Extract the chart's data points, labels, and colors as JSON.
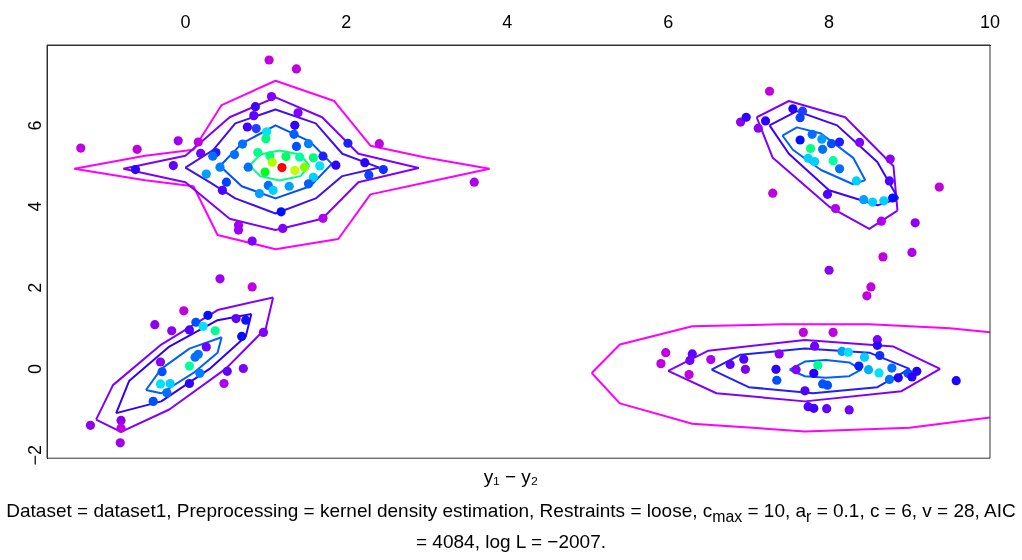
{
  "chart_data": {
    "type": "scatter",
    "xlabel": "y₁ − y₂",
    "annotations": [
      "Dataset = dataset1, Preprocessing = kernel density estimation, Restraints = loose, c$_{max}$ = 10, a$_{r}$ = 0.1, c = 6, v = 28, AIC = 4084, log L = −2007."
    ],
    "xlim": [
      -1.72,
      10
    ],
    "xticks": [
      0,
      2,
      4,
      6,
      8,
      10
    ],
    "ylim": [
      -2.2,
      7.98
    ],
    "yticks": [
      {
        "value": -2,
        "label": "−2"
      },
      0,
      2,
      4,
      6
    ],
    "grid": false,
    "legend": false,
    "marker": "circle",
    "series": [
      {
        "type": "line",
        "marker": "none",
        "color": "#00ff80",
        "x": [
          0.8,
          0.93,
          1.17,
          1.43,
          1.54
        ],
        "values": [
          5.01,
          5.28,
          5.38,
          5.28,
          5.01
        ]
      },
      {
        "type": "line",
        "marker": "none",
        "color": "#00ff80",
        "x": [
          0.8,
          0.93,
          1.17,
          1.43,
          1.54
        ],
        "values": [
          5.01,
          4.75,
          4.64,
          4.75,
          5.01
        ]
      },
      {
        "type": "line",
        "marker": "none",
        "color": "#0050ff",
        "x": [
          0.43,
          0.7,
          1.12,
          1.55,
          1.82
        ],
        "values": [
          5.0,
          5.55,
          6.0,
          5.6,
          5.05
        ]
      },
      {
        "type": "line",
        "marker": "none",
        "color": "#0050ff",
        "x": [
          0.43,
          0.7,
          1.12,
          1.55,
          1.82
        ],
        "values": [
          5.0,
          4.5,
          4.2,
          4.5,
          5.05
        ]
      },
      {
        "type": "line",
        "marker": "none",
        "color": "#4010f0",
        "x": [
          0.0,
          0.35,
          0.62,
          1.12,
          1.62,
          1.95,
          2.41
        ],
        "values": [
          4.96,
          5.4,
          6.05,
          6.39,
          6.05,
          5.3,
          4.96
        ]
      },
      {
        "type": "line",
        "marker": "none",
        "color": "#4010f0",
        "x": [
          0.0,
          0.3,
          0.62,
          1.12,
          1.62,
          1.95,
          2.41
        ],
        "values": [
          4.96,
          4.6,
          4.2,
          3.83,
          4.2,
          4.75,
          4.96
        ]
      },
      {
        "type": "line",
        "marker": "none",
        "color": "#8000ff",
        "x": [
          -0.77,
          0.0,
          0.55,
          1.12,
          1.7,
          2.15,
          2.9
        ],
        "values": [
          4.93,
          5.25,
          6.2,
          6.69,
          6.2,
          5.3,
          4.95
        ]
      },
      {
        "type": "line",
        "marker": "none",
        "color": "#8000ff",
        "x": [
          -0.77,
          0.0,
          0.55,
          1.12,
          1.7,
          2.15,
          2.9
        ],
        "values": [
          4.93,
          4.6,
          3.7,
          3.42,
          3.7,
          4.6,
          4.95
        ]
      },
      {
        "type": "line",
        "marker": "none",
        "color": "#ff00ff",
        "x": [
          -1.38,
          -0.5,
          0.1,
          0.45,
          1.12,
          1.85,
          2.3,
          3.0,
          3.78
        ],
        "values": [
          4.93,
          5.25,
          5.4,
          6.5,
          7.1,
          6.6,
          5.5,
          5.2,
          4.93
        ]
      },
      {
        "type": "line",
        "marker": "none",
        "color": "#ff00ff",
        "x": [
          -1.38,
          -0.5,
          0.1,
          0.4,
          1.12,
          1.9,
          2.3,
          3.0,
          3.78
        ],
        "values": [
          4.93,
          4.65,
          4.5,
          3.3,
          2.95,
          3.2,
          4.3,
          4.6,
          4.93
        ]
      },
      {
        "type": "line",
        "marker": "none",
        "color": "#0060ff",
        "x": [
          -0.49,
          -0.3,
          0.05,
          0.45
        ],
        "values": [
          -0.52,
          0.0,
          0.5,
          0.78
        ]
      },
      {
        "type": "line",
        "marker": "none",
        "color": "#0060ff",
        "x": [
          -0.49,
          -0.3,
          0.1,
          0.4,
          0.45
        ],
        "values": [
          -0.52,
          -0.6,
          -0.1,
          0.4,
          0.78
        ]
      },
      {
        "type": "line",
        "marker": "none",
        "color": "#3000ff",
        "x": [
          -0.86,
          -0.7,
          -0.2,
          0.4,
          0.82
        ],
        "values": [
          -1.09,
          -0.3,
          0.55,
          1.2,
          1.35
        ]
      },
      {
        "type": "line",
        "marker": "none",
        "color": "#3000ff",
        "x": [
          -0.86,
          -0.3,
          0.3,
          0.75,
          0.82
        ],
        "values": [
          -1.09,
          -0.8,
          0.0,
          0.8,
          1.35
        ]
      },
      {
        "type": "line",
        "marker": "none",
        "color": "#8000ff",
        "x": [
          -1.11,
          -0.9,
          -0.3,
          0.4,
          1.09
        ],
        "values": [
          -1.25,
          -0.4,
          0.6,
          1.45,
          1.76
        ]
      },
      {
        "type": "line",
        "marker": "none",
        "color": "#8000ff",
        "x": [
          -1.11,
          -0.8,
          -0.2,
          0.5,
          1.0,
          1.09
        ],
        "values": [
          -1.25,
          -1.55,
          -1.0,
          0.0,
          1.0,
          1.76
        ]
      },
      {
        "type": "line",
        "marker": "none",
        "color": "#0060ff",
        "x": [
          7.42,
          7.6,
          7.9,
          8.3,
          8.45
        ],
        "values": [
          5.75,
          5.95,
          5.8,
          5.2,
          4.65
        ]
      },
      {
        "type": "line",
        "marker": "none",
        "color": "#0060ff",
        "x": [
          7.42,
          7.55,
          7.9,
          8.3,
          8.45
        ],
        "values": [
          5.75,
          5.4,
          4.9,
          4.55,
          4.65
        ]
      },
      {
        "type": "line",
        "marker": "none",
        "color": "#4000ff",
        "x": [
          7.26,
          7.6,
          8.1,
          8.6,
          8.86
        ],
        "values": [
          6.0,
          6.35,
          6.0,
          5.1,
          4.2
        ]
      },
      {
        "type": "line",
        "marker": "none",
        "color": "#4000ff",
        "x": [
          7.26,
          7.5,
          8.0,
          8.6,
          8.86
        ],
        "values": [
          6.0,
          5.3,
          4.4,
          4.03,
          4.2
        ]
      },
      {
        "type": "line",
        "marker": "none",
        "color": "#8000ff",
        "x": [
          7.1,
          7.5,
          8.2,
          8.8,
          8.85
        ],
        "values": [
          6.2,
          6.6,
          6.2,
          5.0,
          3.9
        ]
      },
      {
        "type": "line",
        "marker": "none",
        "color": "#8000ff",
        "x": [
          7.1,
          7.3,
          8.0,
          8.5,
          8.85
        ],
        "values": [
          6.2,
          5.2,
          4.0,
          3.45,
          3.9
        ]
      },
      {
        "type": "line",
        "marker": "none",
        "color": "#0060ff",
        "x": [
          7.51,
          7.7,
          7.96,
          8.25,
          8.4
        ],
        "values": [
          -0.02,
          0.18,
          0.22,
          0.16,
          -0.02
        ]
      },
      {
        "type": "line",
        "marker": "none",
        "color": "#0060ff",
        "x": [
          7.51,
          7.7,
          7.96,
          8.25,
          8.4
        ],
        "values": [
          -0.02,
          -0.18,
          -0.22,
          -0.18,
          -0.02
        ]
      },
      {
        "type": "line",
        "marker": "none",
        "color": "#2020ff",
        "x": [
          6.54,
          6.9,
          7.7,
          8.5,
          9.0
        ],
        "values": [
          -0.02,
          0.35,
          0.5,
          0.4,
          0.0
        ]
      },
      {
        "type": "line",
        "marker": "none",
        "color": "#2020ff",
        "x": [
          6.54,
          7.0,
          7.8,
          8.6,
          9.0
        ],
        "values": [
          -0.02,
          -0.45,
          -0.6,
          -0.45,
          0.0
        ]
      },
      {
        "type": "line",
        "marker": "none",
        "color": "#8000ff",
        "x": [
          6.0,
          6.5,
          7.7,
          8.8,
          9.38
        ],
        "values": [
          -0.05,
          0.45,
          0.71,
          0.55,
          0.0
        ]
      },
      {
        "type": "line",
        "marker": "none",
        "color": "#8000ff",
        "x": [
          6.0,
          6.6,
          7.7,
          8.9,
          9.38
        ],
        "values": [
          -0.05,
          -0.6,
          -0.8,
          -0.55,
          0.0
        ]
      },
      {
        "type": "line",
        "marker": "none",
        "color": "#ff00ff",
        "x": [
          5.05,
          5.4,
          6.3,
          7.4,
          8.5,
          9.5,
          10.0
        ],
        "values": [
          -0.1,
          0.6,
          1.05,
          1.1,
          1.1,
          1.0,
          0.9
        ]
      },
      {
        "type": "line",
        "marker": "none",
        "color": "#ff00ff",
        "x": [
          5.05,
          5.4,
          6.3,
          7.7,
          9.0,
          10.0
        ],
        "values": [
          -0.1,
          -0.85,
          -1.35,
          -1.54,
          -1.45,
          -1.2
        ]
      },
      {
        "x": [
          1.04,
          1.38,
          1.07,
          0.87,
          0.85,
          1.4,
          1.36,
          0.77,
          0.88,
          1.01,
          1.0,
          1.35,
          1.38,
          1.53,
          -0.09,
          0.16,
          -1.3,
          -0.6,
          0.19,
          0.38,
          2.02,
          2.41,
          0.71,
          0.61,
          0.34,
          0.9,
          1.05,
          1.25,
          1.42,
          1.59,
          1.71,
          1.87,
          1.67,
          2.23,
          2.46,
          2.28,
          3.59,
          -0.62,
          -0.15,
          0.43,
          0.78,
          0.99,
          1.08,
          1.2,
          1.36,
          1.48,
          1.59,
          0.26,
          0.51,
          0.46,
          1.03,
          1.09,
          0.92,
          1.29,
          1.53,
          1.19,
          0.66,
          0.66,
          1.21,
          1.71,
          0.83,
          0.43,
          0.83,
          -0.02,
          -0.38,
          -0.17,
          0.05,
          0.13,
          0.22,
          0.28,
          0.37,
          0.63,
          0.75,
          0.7,
          0.97,
          0.26,
          0.12,
          0.16,
          -0.31,
          -0.29,
          0.05,
          0.18,
          -0.31,
          -0.19,
          -0.23,
          0.05,
          0.52,
          0.72,
          0.48,
          -0.4,
          -0.8,
          -0.8,
          -1.18,
          -0.81,
          7.26,
          6.9,
          6.97,
          7.12,
          7.21,
          7.55,
          7.67,
          7.64,
          7.79,
          7.64,
          7.91,
          8.03,
          8.13,
          8.38,
          7.77,
          7.92,
          7.74,
          7.82,
          8.05,
          8.13,
          8.76,
          8.34,
          8.75,
          9.37,
          7.98,
          8.43,
          8.54,
          8.68,
          8.79,
          7.3,
          8.08,
          8.65,
          9.07,
          8.67,
          9.03,
          8.0,
          8.52,
          8.47,
          7.68,
          8.05,
          8.6,
          8.6,
          7.82,
          7.38,
          8.16,
          8.24,
          8.44,
          8.63,
          5.97,
          5.91,
          6.3,
          6.27,
          6.53,
          6.77,
          6.94,
          6.96,
          6.26,
          7.34,
          7.35,
          7.59,
          7.86,
          7.81,
          7.92,
          7.98,
          7.7,
          8.37,
          8.49,
          8.62,
          8.78,
          8.75,
          8.86,
          8.98,
          9.09,
          9.03,
          9.58,
          7.74,
          7.81,
          7.97,
          8.25
        ],
        "values": [
          7.61,
          7.39,
          6.71,
          6.46,
          6.24,
          6.31,
          6.0,
          5.96,
          5.92,
          5.84,
          5.67,
          5.78,
          5.48,
          5.55,
          5.62,
          5.59,
          5.44,
          5.41,
          5.31,
          5.33,
          5.56,
          5.55,
          5.54,
          5.28,
          5.24,
          5.33,
          5.25,
          5.23,
          5.22,
          5.2,
          5.24,
          5.02,
          5.0,
          5.08,
          4.91,
          4.78,
          4.6,
          4.91,
          5.01,
          4.97,
          4.97,
          4.85,
          5.09,
          4.96,
          4.89,
          4.97,
          4.72,
          4.8,
          4.6,
          4.4,
          4.52,
          4.4,
          4.32,
          4.5,
          4.56,
          3.87,
          3.54,
          3.42,
          3.46,
          3.71,
          3.15,
          2.22,
          2.02,
          1.43,
          1.09,
          0.94,
          0.96,
          1.15,
          1.05,
          1.32,
          0.94,
          1.24,
          1.2,
          0.8,
          0.9,
          0.54,
          0.29,
          0.36,
          0.17,
          -0.07,
          0.07,
          -0.11,
          -0.37,
          -0.36,
          -0.59,
          -0.36,
          -0.06,
          0.01,
          -0.36,
          -0.8,
          -1.27,
          -1.46,
          -1.39,
          -1.82,
          6.84,
          6.08,
          6.2,
          5.93,
          6.11,
          6.41,
          6.35,
          6.19,
          5.78,
          5.64,
          5.66,
          5.55,
          5.59,
          5.58,
          5.43,
          5.41,
          5.19,
          5.11,
          5.13,
          4.93,
          5.17,
          4.63,
          4.63,
          4.48,
          4.3,
          4.17,
          4.11,
          4.14,
          4.21,
          4.33,
          3.95,
          3.64,
          3.6,
          2.76,
          2.87,
          2.43,
          2.02,
          1.8,
          0.9,
          0.9,
          0.72,
          0.58,
          0.56,
          0.37,
          0.43,
          0.41,
          0.29,
          0.33,
          0.4,
          0.13,
          0.37,
          0.21,
          0.23,
          0.11,
          0.24,
          -0.01,
          -0.14,
          -0.01,
          -0.28,
          -0.02,
          0.09,
          -0.11,
          -0.37,
          -0.4,
          -0.54,
          0.07,
          -0.02,
          -0.1,
          0.02,
          -0.26,
          -0.22,
          -0.11,
          -0.06,
          -0.2,
          -0.29,
          -0.93,
          -0.97,
          -0.98,
          -1.01
        ],
        "colors": [
          "#c000e0",
          "#c000e0",
          "#8000ff",
          "#4000ff",
          "#6000ff",
          "#8000ff",
          "#3000ff",
          "#4000ff",
          "#2040ff",
          "#00e0ff",
          "#00ff80",
          "#0060ff",
          "#0050ff",
          "#0080ff",
          "#a000f0",
          "#c000e0",
          "#c000e0",
          "#c000e0",
          "#7000ff",
          "#2020ff",
          "#2020ff",
          "#c000e0",
          "#0070ff",
          "#0070ff",
          "#0070ff",
          "#00ff90",
          "#00ff80",
          "#00ff60",
          "#00ffa0",
          "#00ff80",
          "#2020ff",
          "#3000ff",
          "#00e0ff",
          "#3000ff",
          "#1030ff",
          "#1040ff",
          "#b000f0",
          "#3000ff",
          "#6000ff",
          "#0080ff",
          "#0070ff",
          "#00ff20",
          "#b0ff00",
          "#ff0000",
          "#c0ff00",
          "#80ff00",
          "#00d0ff",
          "#00a0ff",
          "#0040ff",
          "#5000ff",
          "#0070ff",
          "#00d0ff",
          "#00a0ff",
          "#00a0ff",
          "#0060ff",
          "#0010ff",
          "#a000f0",
          "#a000f0",
          "#8000ff",
          "#b000f0",
          "#8000ff",
          "#a000f0",
          "#c000e0",
          "#c000e0",
          "#9000f0",
          "#9000f0",
          "#5000ff",
          "#0050ff",
          "#00e0ff",
          "#0010ff",
          "#00ff90",
          "#6000ff",
          "#1010ff",
          "#0010ff",
          "#8000ff",
          "#7000ff",
          "#0070ff",
          "#0070ff",
          "#9000f0",
          "#0050ff",
          "#00ffa0",
          "#0080ff",
          "#00e0ff",
          "#00d0ff",
          "#0070ff",
          "#3000ff",
          "#6000ff",
          "#8000ff",
          "#b000f0",
          "#0050ff",
          "#9000f0",
          "#c000e0",
          "#9000f0",
          "#a000f0",
          "#c000e0",
          "#9000f0",
          "#3000ff",
          "#9000f0",
          "#3000ff",
          "#2000ff",
          "#2040ff",
          "#1040ff",
          "#0070ff",
          "#0010ff",
          "#00a0ff",
          "#0050ff",
          "#2020ff",
          "#8000ff",
          "#00ff80",
          "#0070ff",
          "#00d0ff",
          "#00d0ff",
          "#00ffa0",
          "#0070ff",
          "#9000f0",
          "#00d0ff",
          "#5000ff",
          "#c000e0",
          "#5000ff",
          "#00a0ff",
          "#00d0ff",
          "#00d0ff",
          "#0010ff",
          "#c000e0",
          "#b000f0",
          "#b000f0",
          "#9000f0",
          "#c000e0",
          "#b000f0",
          "#9000f0",
          "#c000e0",
          "#c000e0",
          "#c000e0",
          "#c000e0",
          "#8000ff",
          "#3000ff",
          "#7000ff",
          "#9000f0",
          "#00a0ff",
          "#00e0ff",
          "#00d0ff",
          "#1030ff",
          "#c000e0",
          "#c000e0",
          "#6000ff",
          "#7000f0",
          "#b000f0",
          "#6000ff",
          "#5000ff",
          "#8000f0",
          "#c000e0",
          "#3000ff",
          "#0050ff",
          "#8000ff",
          "#00ff90",
          "#2000ff",
          "#0050ff",
          "#0050ff",
          "#5000ff",
          "#0020ff",
          "#00b0ff",
          "#00e0ff",
          "#0070ff",
          "#0070ff",
          "#2000ff",
          "#0050ff",
          "#2000ff",
          "#3000ff",
          "#2000ff",
          "#5000ff",
          "#4000ff",
          "#6000ff",
          "#7000ff"
        ]
      }
    ]
  }
}
